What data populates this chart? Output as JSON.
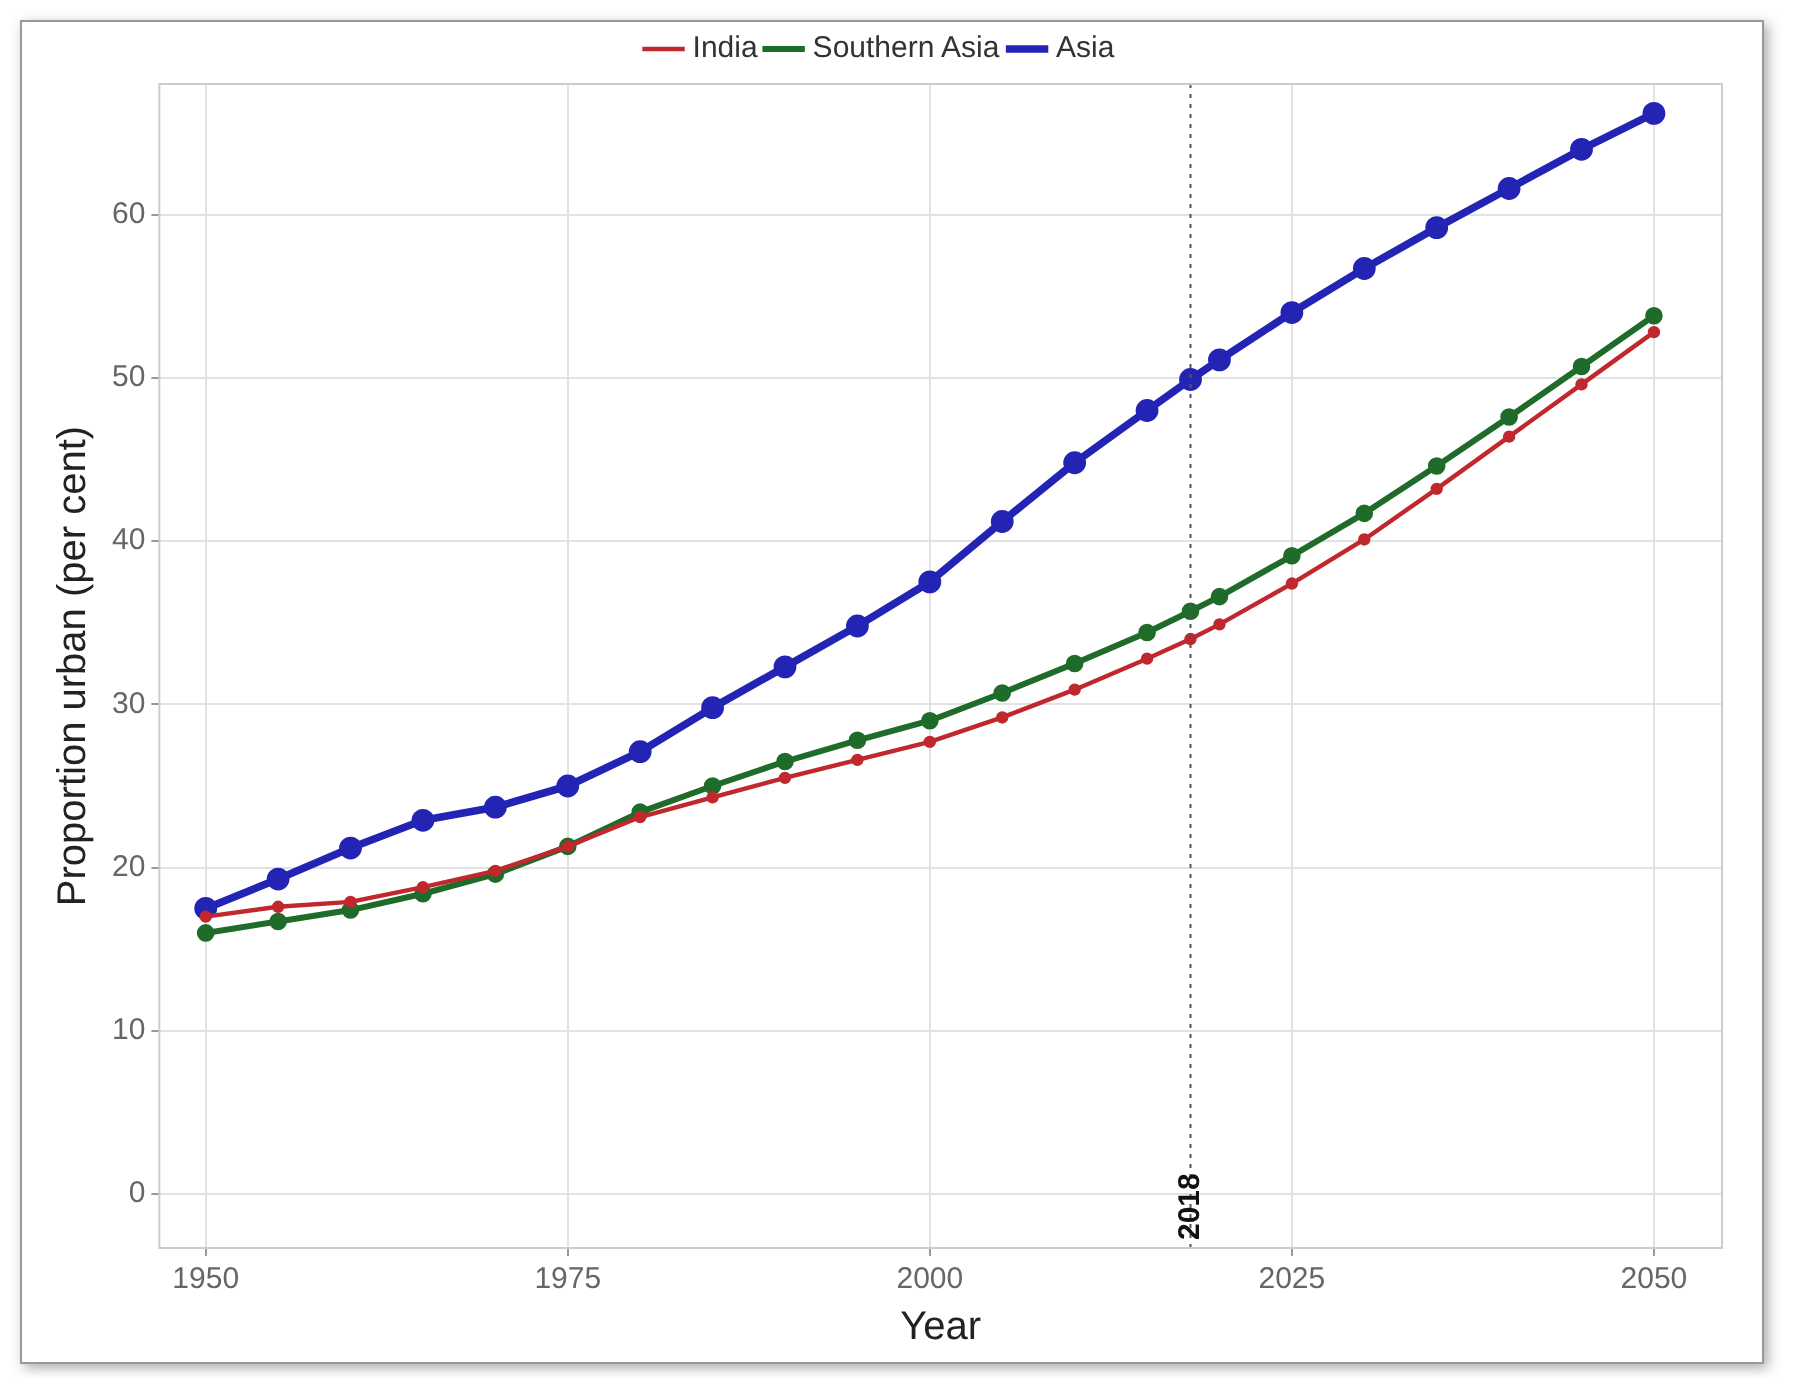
{
  "chart_data": {
    "type": "line",
    "xlabel": "Year",
    "ylabel": "Proportion urban (per cent)",
    "x": [
      1950,
      1955,
      1960,
      1965,
      1970,
      1975,
      1980,
      1985,
      1990,
      1995,
      2000,
      2005,
      2010,
      2015,
      2018,
      2020,
      2025,
      2030,
      2035,
      2040,
      2045,
      2050
    ],
    "series": [
      {
        "name": "India",
        "color": "#c0282d",
        "values": [
          17.0,
          17.6,
          17.9,
          18.8,
          19.8,
          21.3,
          23.1,
          24.3,
          25.5,
          26.6,
          27.7,
          29.2,
          30.9,
          32.8,
          34.0,
          34.9,
          37.4,
          40.1,
          43.2,
          46.4,
          49.6,
          52.8
        ]
      },
      {
        "name": "Southern Asia",
        "color": "#1e6b2a",
        "values": [
          16.0,
          16.7,
          17.4,
          18.4,
          19.6,
          21.3,
          23.4,
          25.0,
          26.5,
          27.8,
          29.0,
          30.7,
          32.5,
          34.4,
          35.7,
          36.6,
          39.1,
          41.7,
          44.6,
          47.6,
          50.7,
          53.8
        ]
      },
      {
        "name": "Asia",
        "color": "#2323b4",
        "values": [
          17.5,
          19.3,
          21.2,
          22.9,
          23.7,
          25.0,
          27.1,
          29.8,
          32.3,
          34.8,
          37.5,
          41.2,
          44.8,
          48.0,
          49.9,
          51.1,
          54.0,
          56.7,
          59.2,
          61.6,
          64.0,
          66.2
        ]
      }
    ],
    "xlim": [
      1946.8,
      2054.7
    ],
    "xticks": [
      1950,
      1975,
      2000,
      2025,
      2050
    ],
    "ylim": [
      -3.3,
      68
    ],
    "yticks": [
      0,
      10,
      20,
      30,
      40,
      50,
      60
    ],
    "ref_lines": [
      {
        "axis": "x",
        "value": 2018,
        "label": "2018",
        "line_style": "dotted"
      }
    ],
    "grid": true,
    "legend": "top",
    "marker": "circle",
    "line_style": "solid"
  }
}
